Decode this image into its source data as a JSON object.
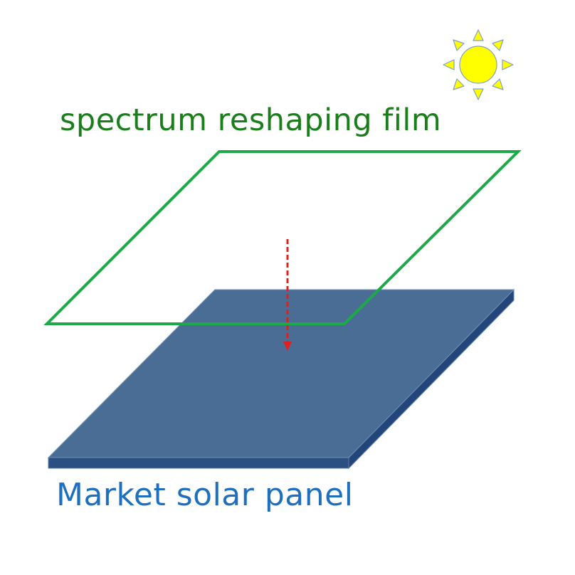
{
  "labels": {
    "film": "spectrum reshaping film",
    "panel": "Market solar panel"
  },
  "icons": {
    "sun": "sun-icon",
    "arrow": "dashed-arrow-down-icon"
  },
  "colors": {
    "film_text": "#1a7f1a",
    "film_outline": "#1fa84a",
    "panel_text": "#1f6fbf",
    "panel_top": "#4a6d96",
    "panel_edge": "#2c4f82",
    "arrow": "#e0201f",
    "sun_fill": "#ffff00",
    "sun_stroke": "#7f9fcf"
  }
}
